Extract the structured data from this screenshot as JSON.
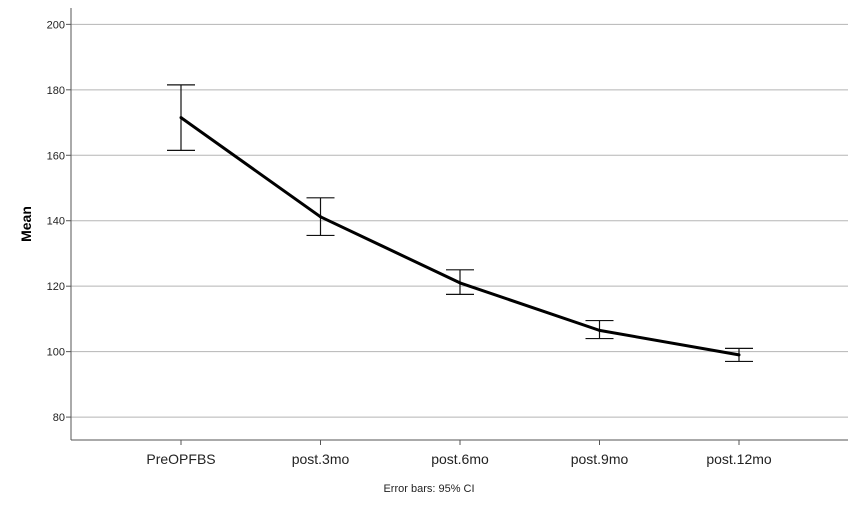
{
  "chart_data": {
    "type": "line",
    "title": "",
    "xlabel": "",
    "ylabel": "Mean",
    "categories": [
      "PreOPFBS",
      "post.3mo",
      "post.6mo",
      "post.9mo",
      "post.12mo"
    ],
    "series": [
      {
        "values": [
          171.5,
          141.2,
          121.0,
          106.5,
          99.0
        ],
        "ci_lower": [
          161.5,
          135.5,
          117.5,
          104.0,
          97.0
        ],
        "ci_upper": [
          181.5,
          147.0,
          125.0,
          109.5,
          101.0
        ],
        "color": "#000000"
      }
    ],
    "ylim": [
      73,
      205
    ],
    "yticks": [
      80,
      100,
      120,
      140,
      160,
      180,
      200
    ],
    "grid": "horizontal",
    "footnote": "Error bars: 95% CI"
  }
}
